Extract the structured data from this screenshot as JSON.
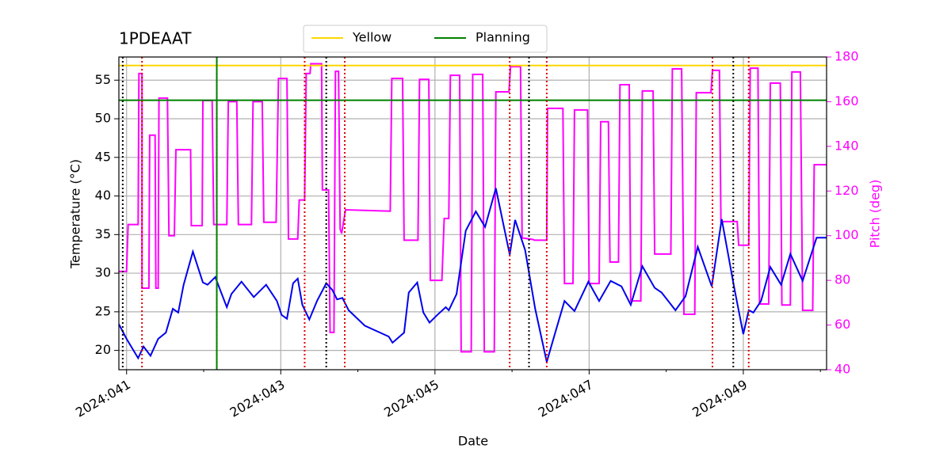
{
  "chart_data": {
    "type": "line",
    "title": "1PDEAAT",
    "xlabel": "Date",
    "ylabel": "Temperature (°C)",
    "y2label": "Pitch (deg)",
    "y2color": "#ff00ff",
    "xlim": [
      40.9,
      50.08
    ],
    "xticks": [
      {
        "value": 41,
        "label": "2024:041"
      },
      {
        "value": 43,
        "label": "2024:043"
      },
      {
        "value": 45,
        "label": "2024:045"
      },
      {
        "value": 47,
        "label": "2024:047"
      },
      {
        "value": 49,
        "label": "2024:049"
      }
    ],
    "xminorticks": [
      42,
      44,
      46,
      48,
      50
    ],
    "ylim": [
      17.5,
      58
    ],
    "yticks": [
      20,
      25,
      30,
      35,
      40,
      45,
      50,
      55
    ],
    "y2lim": [
      40,
      180
    ],
    "y2ticks": [
      40,
      60,
      80,
      100,
      120,
      140,
      160,
      180
    ],
    "grid": true,
    "legend": "upper center",
    "hlines": [
      {
        "name": "Yellow",
        "color": "#ffd700",
        "value": 56.9
      },
      {
        "name": "Planning",
        "color": "#008000",
        "value": 52.4
      }
    ],
    "vlines": [
      {
        "color": "#000000",
        "style": "dotted",
        "x": [
          40.95,
          43.59,
          46.22,
          48.87
        ]
      },
      {
        "color": "#dd0000",
        "style": "dotted",
        "x": [
          41.2,
          42.17,
          43.31,
          43.83,
          45.97,
          46.45,
          48.6,
          49.07
        ]
      },
      {
        "color": "#008000",
        "style": "solid",
        "x": [
          42.17
        ]
      }
    ],
    "series": [
      {
        "color": "#ff00ff",
        "axis": "y2",
        "x": [
          40.9,
          41.0,
          41.02,
          41.15,
          41.16,
          41.2,
          41.2,
          41.29,
          41.3,
          41.37,
          41.38,
          41.41,
          41.42,
          41.53,
          41.55,
          41.62,
          41.64,
          41.83,
          41.84,
          41.98,
          41.99,
          42.11,
          42.13,
          42.3,
          42.32,
          42.43,
          42.45,
          42.62,
          42.64,
          42.76,
          42.78,
          42.94,
          42.97,
          43.08,
          43.1,
          43.22,
          43.24,
          43.31,
          43.33,
          43.38,
          43.39,
          43.53,
          43.54,
          43.62,
          43.64,
          43.69,
          43.71,
          43.75,
          43.77,
          43.79,
          43.84,
          44.42,
          44.44,
          44.58,
          44.6,
          44.78,
          44.8,
          44.92,
          44.94,
          45.09,
          45.12,
          45.18,
          45.2,
          45.32,
          45.34,
          45.47,
          45.49,
          45.62,
          45.64,
          45.77,
          45.79,
          45.96,
          45.98,
          46.11,
          46.13,
          46.27,
          46.29,
          46.45,
          46.46,
          46.66,
          46.68,
          46.79,
          46.81,
          46.98,
          47.0,
          47.13,
          47.15,
          47.25,
          47.27,
          47.38,
          47.4,
          47.52,
          47.54,
          47.67,
          47.69,
          47.83,
          47.85,
          48.06,
          48.08,
          48.2,
          48.23,
          48.37,
          48.39,
          48.58,
          48.6,
          48.69,
          48.71,
          48.92,
          48.94,
          49.07,
          49.09,
          49.19,
          49.21,
          49.33,
          49.35,
          49.48,
          49.5,
          49.61,
          49.63,
          49.74,
          49.77,
          49.9,
          49.92,
          50.08
        ],
        "values": [
          84,
          84,
          105,
          105,
          172.6,
          172.6,
          76.5,
          76.5,
          145,
          145,
          76.5,
          76.5,
          161.6,
          161.6,
          100,
          100,
          138.5,
          138.5,
          104.5,
          104.5,
          160.5,
          160.5,
          105,
          105,
          160,
          160,
          105,
          105,
          160,
          160,
          106,
          106,
          170.4,
          170.4,
          98.5,
          98.5,
          116,
          116,
          172.6,
          172.6,
          177,
          177,
          120.5,
          120.5,
          56.7,
          56.7,
          173.6,
          173.6,
          103,
          101,
          111.6,
          111,
          170.4,
          170.4,
          98,
          98,
          170,
          170,
          80,
          80,
          107.7,
          107.7,
          171.8,
          171.8,
          48,
          48,
          172.2,
          172.2,
          48,
          48,
          164.4,
          164.4,
          175.7,
          175.7,
          99,
          98.3,
          98,
          98,
          157,
          157,
          78.6,
          78.6,
          156.3,
          156.3,
          78.6,
          78.6,
          151,
          151,
          88.2,
          88.2,
          167.6,
          167.6,
          70.8,
          70.8,
          164.8,
          164.8,
          91.8,
          91.8,
          174.7,
          174.7,
          64.8,
          64.8,
          164,
          164,
          174,
          174,
          106.3,
          106.3,
          95.7,
          95.7,
          175,
          175,
          69.4,
          69.4,
          168.3,
          168.3,
          69,
          69,
          173.3,
          173.3,
          66.6,
          66.6,
          131.8,
          131.8
        ]
      },
      {
        "color": "#0000ee",
        "x": [
          40.9,
          41.0,
          41.15,
          41.22,
          41.31,
          41.41,
          41.51,
          41.6,
          41.67,
          41.74,
          41.86,
          41.99,
          42.05,
          42.15,
          42.3,
          42.36,
          42.49,
          42.65,
          42.81,
          42.95,
          43.01,
          43.08,
          43.16,
          43.22,
          43.28,
          43.37,
          43.47,
          43.59,
          43.67,
          43.73,
          43.8,
          43.88,
          44.09,
          44.4,
          44.45,
          44.6,
          44.66,
          44.77,
          44.85,
          44.93,
          45.03,
          45.14,
          45.18,
          45.28,
          45.4,
          45.53,
          45.65,
          45.79,
          45.97,
          46.04,
          46.17,
          46.3,
          46.45,
          46.56,
          46.68,
          46.81,
          46.99,
          47.13,
          47.28,
          47.42,
          47.54,
          47.69,
          47.85,
          47.94,
          48.12,
          48.25,
          48.41,
          48.59,
          48.72,
          48.88,
          49.0,
          49.07,
          49.13,
          49.23,
          49.35,
          49.49,
          49.61,
          49.77,
          49.95,
          50.08
        ],
        "values": [
          23.4,
          21.5,
          19.0,
          20.5,
          19.3,
          21.5,
          22.3,
          25.4,
          24.9,
          28.5,
          32.8,
          28.8,
          28.5,
          29.5,
          25.6,
          27.3,
          28.9,
          26.9,
          28.5,
          26.4,
          24.6,
          24.1,
          28.7,
          29.3,
          25.9,
          24.0,
          26.4,
          28.7,
          27.8,
          26.6,
          26.8,
          25.2,
          23.2,
          21.8,
          21.0,
          22.3,
          27.5,
          28.8,
          24.9,
          23.6,
          24.6,
          25.6,
          25.2,
          27.3,
          35.5,
          38.0,
          36.0,
          41.0,
          32.4,
          36.9,
          33.0,
          25.4,
          18.5,
          22.3,
          26.4,
          25.1,
          28.9,
          26.4,
          29.0,
          28.3,
          25.9,
          30.9,
          28.1,
          27.5,
          25.2,
          27.0,
          33.4,
          28.3,
          37.0,
          28.2,
          22.1,
          25.2,
          24.9,
          26.4,
          30.8,
          28.5,
          32.5,
          29.0,
          34.6,
          34.6
        ]
      }
    ]
  }
}
